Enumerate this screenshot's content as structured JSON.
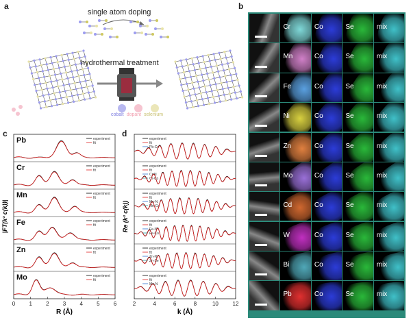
{
  "panels": {
    "a": {
      "label": "a",
      "top_text": "single atom doping",
      "mid_text": "hydrothermal treatment",
      "legend": [
        {
          "text": "cobalt",
          "color": "#7d7de0"
        },
        {
          "text": "dopant",
          "color": "#f2a0b0"
        },
        {
          "text": "selenium",
          "color": "#d8d08a"
        }
      ]
    },
    "b": {
      "label": "b",
      "columns": [
        "Co",
        "Se",
        "mix"
      ],
      "rows": [
        {
          "element": "Cr",
          "color": "#7fd8d8"
        },
        {
          "element": "Mn",
          "color": "#d080c8"
        },
        {
          "element": "Fe",
          "color": "#5aa0e0"
        },
        {
          "element": "Ni",
          "color": "#d8d040"
        },
        {
          "element": "Zn",
          "color": "#e08040"
        },
        {
          "element": "Mo",
          "color": "#9a70d8"
        },
        {
          "element": "Cd",
          "color": "#d06830"
        },
        {
          "element": "W",
          "color": "#c030c0"
        },
        {
          "element": "Bi",
          "color": "#50a8b8"
        },
        {
          "element": "Pb",
          "color": "#e03030"
        }
      ]
    },
    "c": {
      "label": "c",
      "ylabel": "|FT(k³ c(k))|",
      "xlabel": "R (Å)",
      "xticks": [
        "0",
        "1",
        "2",
        "3",
        "4",
        "5",
        "6"
      ],
      "legend_experiment": "experiment",
      "legend_fit": "fit",
      "rows": [
        "Pb",
        "Cr",
        "Mn",
        "Fe",
        "Zn",
        "Mo"
      ]
    },
    "d": {
      "label": "d",
      "ylabel": "Re (k³ c(k))",
      "xlabel": "k (Å)",
      "xticks": [
        "2",
        "4",
        "6",
        "8",
        "10",
        "12"
      ],
      "legend_experiment": "experiment",
      "legend_fit": "fit",
      "rows": [
        {
          "paths": [
            "Pb-Co"
          ]
        },
        {
          "paths": [
            "Cr-N",
            "Cr-Co"
          ]
        },
        {
          "paths": [
            "Mn-N",
            "Mn-Co"
          ]
        },
        {
          "paths": [
            "Fe-N",
            "Fe-Co"
          ]
        },
        {
          "paths": [
            "Zn-N",
            "Zn-Se"
          ]
        },
        {
          "paths": [
            "Mo-N"
          ]
        }
      ]
    }
  }
}
